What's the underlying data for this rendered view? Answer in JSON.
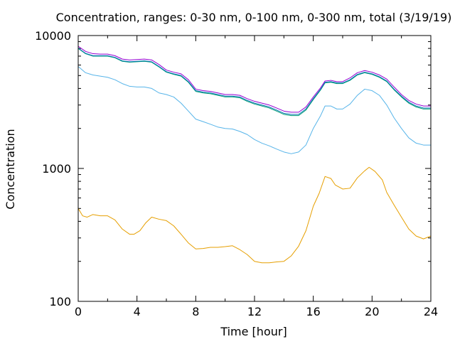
{
  "chart_data": {
    "type": "line",
    "title": "Concentration, ranges: 0-30 nm, 0-100 nm, 0-300 nm, total (3/19/19)",
    "xlabel": "Time [hour]",
    "ylabel": "Concentration",
    "x_scale": "linear",
    "y_scale": "log",
    "xlim": [
      0,
      24
    ],
    "ylim": [
      100,
      10000
    ],
    "x_ticks": [
      0,
      4,
      8,
      12,
      16,
      20,
      24
    ],
    "x_tick_labels": [
      "0",
      "4",
      "8",
      "12",
      "16",
      "20",
      "24"
    ],
    "y_ticks": [
      100,
      1000,
      10000
    ],
    "y_tick_labels": [
      "100",
      "1000",
      "10000"
    ],
    "grid": false,
    "legend": "none",
    "series": [
      {
        "color": "#e69f00",
        "points": [
          [
            0,
            500
          ],
          [
            0.3,
            440
          ],
          [
            0.6,
            430
          ],
          [
            1,
            450
          ],
          [
            1.5,
            440
          ],
          [
            2,
            440
          ],
          [
            2.5,
            410
          ],
          [
            3,
            350
          ],
          [
            3.5,
            320
          ],
          [
            3.8,
            320
          ],
          [
            4.2,
            340
          ],
          [
            4.6,
            390
          ],
          [
            5,
            430
          ],
          [
            5.5,
            415
          ],
          [
            6,
            405
          ],
          [
            6.5,
            370
          ],
          [
            7,
            320
          ],
          [
            7.5,
            275
          ],
          [
            8,
            248
          ],
          [
            8.5,
            250
          ],
          [
            9,
            255
          ],
          [
            9.5,
            255
          ],
          [
            10,
            258
          ],
          [
            10.5,
            262
          ],
          [
            11,
            245
          ],
          [
            11.5,
            225
          ],
          [
            12,
            200
          ],
          [
            12.5,
            195
          ],
          [
            13,
            195
          ],
          [
            13.5,
            198
          ],
          [
            14,
            200
          ],
          [
            14.5,
            220
          ],
          [
            15,
            260
          ],
          [
            15.5,
            340
          ],
          [
            16,
            520
          ],
          [
            16.4,
            650
          ],
          [
            16.8,
            870
          ],
          [
            17.2,
            840
          ],
          [
            17.5,
            750
          ],
          [
            18,
            700
          ],
          [
            18.5,
            710
          ],
          [
            19,
            850
          ],
          [
            19.5,
            960
          ],
          [
            19.8,
            1020
          ],
          [
            20.2,
            950
          ],
          [
            20.7,
            820
          ],
          [
            21,
            660
          ],
          [
            21.5,
            530
          ],
          [
            22,
            430
          ],
          [
            22.5,
            350
          ],
          [
            23,
            310
          ],
          [
            23.5,
            295
          ],
          [
            24,
            310
          ]
        ]
      },
      {
        "color": "#56b4e9",
        "points": [
          [
            0,
            5850
          ],
          [
            0.5,
            5250
          ],
          [
            1,
            5050
          ],
          [
            1.5,
            4950
          ],
          [
            2,
            4850
          ],
          [
            2.5,
            4650
          ],
          [
            3,
            4350
          ],
          [
            3.5,
            4150
          ],
          [
            4,
            4100
          ],
          [
            4.5,
            4100
          ],
          [
            5,
            4000
          ],
          [
            5.5,
            3700
          ],
          [
            6,
            3600
          ],
          [
            6.5,
            3450
          ],
          [
            7,
            3100
          ],
          [
            7.5,
            2700
          ],
          [
            8,
            2350
          ],
          [
            8.5,
            2250
          ],
          [
            9,
            2150
          ],
          [
            9.5,
            2050
          ],
          [
            10,
            2000
          ],
          [
            10.5,
            1980
          ],
          [
            11,
            1900
          ],
          [
            11.5,
            1800
          ],
          [
            12,
            1650
          ],
          [
            12.5,
            1550
          ],
          [
            13,
            1480
          ],
          [
            13.5,
            1400
          ],
          [
            14,
            1330
          ],
          [
            14.5,
            1290
          ],
          [
            15,
            1330
          ],
          [
            15.5,
            1500
          ],
          [
            16,
            2000
          ],
          [
            16.5,
            2500
          ],
          [
            16.8,
            2950
          ],
          [
            17.2,
            2950
          ],
          [
            17.6,
            2800
          ],
          [
            18,
            2800
          ],
          [
            18.5,
            3050
          ],
          [
            19,
            3550
          ],
          [
            19.5,
            3950
          ],
          [
            20,
            3850
          ],
          [
            20.5,
            3550
          ],
          [
            21,
            3000
          ],
          [
            21.5,
            2400
          ],
          [
            22,
            2000
          ],
          [
            22.5,
            1700
          ],
          [
            23,
            1550
          ],
          [
            23.5,
            1500
          ],
          [
            24,
            1500
          ]
        ]
      },
      {
        "color": "#009e73",
        "points": [
          [
            0,
            8000
          ],
          [
            0.5,
            7300
          ],
          [
            1,
            7000
          ],
          [
            1.5,
            7000
          ],
          [
            2,
            7000
          ],
          [
            2.5,
            6800
          ],
          [
            3,
            6400
          ],
          [
            3.5,
            6300
          ],
          [
            4,
            6350
          ],
          [
            4.5,
            6400
          ],
          [
            5,
            6300
          ],
          [
            5.5,
            5800
          ],
          [
            6,
            5300
          ],
          [
            6.5,
            5100
          ],
          [
            7,
            4950
          ],
          [
            7.5,
            4450
          ],
          [
            8,
            3800
          ],
          [
            8.5,
            3700
          ],
          [
            9,
            3650
          ],
          [
            9.5,
            3550
          ],
          [
            10,
            3450
          ],
          [
            10.5,
            3450
          ],
          [
            11,
            3400
          ],
          [
            11.5,
            3200
          ],
          [
            12,
            3050
          ],
          [
            12.5,
            2950
          ],
          [
            13,
            2850
          ],
          [
            13.5,
            2700
          ],
          [
            14,
            2550
          ],
          [
            14.5,
            2500
          ],
          [
            15,
            2500
          ],
          [
            15.5,
            2750
          ],
          [
            16,
            3300
          ],
          [
            16.5,
            3900
          ],
          [
            16.8,
            4400
          ],
          [
            17.2,
            4450
          ],
          [
            17.6,
            4350
          ],
          [
            18,
            4350
          ],
          [
            18.5,
            4600
          ],
          [
            19,
            5050
          ],
          [
            19.5,
            5250
          ],
          [
            20,
            5100
          ],
          [
            20.5,
            4850
          ],
          [
            21,
            4500
          ],
          [
            21.5,
            3900
          ],
          [
            22,
            3450
          ],
          [
            22.5,
            3100
          ],
          [
            23,
            2900
          ],
          [
            23.5,
            2800
          ],
          [
            24,
            2800
          ]
        ]
      },
      {
        "color": "#0072b2",
        "points": [
          [
            0,
            8050
          ],
          [
            0.5,
            7350
          ],
          [
            1,
            7050
          ],
          [
            1.5,
            7050
          ],
          [
            2,
            7050
          ],
          [
            2.5,
            6850
          ],
          [
            3,
            6450
          ],
          [
            3.5,
            6350
          ],
          [
            4,
            6400
          ],
          [
            4.5,
            6450
          ],
          [
            5,
            6350
          ],
          [
            5.5,
            5850
          ],
          [
            6,
            5350
          ],
          [
            6.5,
            5150
          ],
          [
            7,
            5000
          ],
          [
            7.5,
            4500
          ],
          [
            8,
            3850
          ],
          [
            8.5,
            3750
          ],
          [
            9,
            3700
          ],
          [
            9.5,
            3600
          ],
          [
            10,
            3500
          ],
          [
            10.5,
            3500
          ],
          [
            11,
            3450
          ],
          [
            11.5,
            3250
          ],
          [
            12,
            3100
          ],
          [
            12.5,
            3000
          ],
          [
            13,
            2900
          ],
          [
            13.5,
            2750
          ],
          [
            14,
            2600
          ],
          [
            14.5,
            2550
          ],
          [
            15,
            2550
          ],
          [
            15.5,
            2800
          ],
          [
            16,
            3350
          ],
          [
            16.5,
            3950
          ],
          [
            16.8,
            4450
          ],
          [
            17.2,
            4500
          ],
          [
            17.6,
            4400
          ],
          [
            18,
            4400
          ],
          [
            18.5,
            4650
          ],
          [
            19,
            5100
          ],
          [
            19.5,
            5300
          ],
          [
            20,
            5150
          ],
          [
            20.5,
            4900
          ],
          [
            21,
            4550
          ],
          [
            21.5,
            3950
          ],
          [
            22,
            3500
          ],
          [
            22.5,
            3150
          ],
          [
            23,
            2950
          ],
          [
            23.5,
            2850
          ],
          [
            24,
            2850
          ]
        ]
      },
      {
        "color": "#9400d3",
        "points": [
          [
            0,
            8300
          ],
          [
            0.5,
            7600
          ],
          [
            1,
            7300
          ],
          [
            1.5,
            7250
          ],
          [
            2,
            7250
          ],
          [
            2.5,
            7050
          ],
          [
            3,
            6650
          ],
          [
            3.5,
            6550
          ],
          [
            4,
            6600
          ],
          [
            4.5,
            6650
          ],
          [
            5,
            6550
          ],
          [
            5.5,
            6050
          ],
          [
            6,
            5500
          ],
          [
            6.5,
            5300
          ],
          [
            7,
            5150
          ],
          [
            7.5,
            4650
          ],
          [
            8,
            3950
          ],
          [
            8.5,
            3850
          ],
          [
            9,
            3800
          ],
          [
            9.5,
            3700
          ],
          [
            10,
            3600
          ],
          [
            10.5,
            3600
          ],
          [
            11,
            3550
          ],
          [
            11.5,
            3350
          ],
          [
            12,
            3200
          ],
          [
            12.5,
            3100
          ],
          [
            13,
            3000
          ],
          [
            13.5,
            2850
          ],
          [
            14,
            2700
          ],
          [
            14.5,
            2650
          ],
          [
            15,
            2650
          ],
          [
            15.5,
            2900
          ],
          [
            16,
            3450
          ],
          [
            16.5,
            4050
          ],
          [
            16.8,
            4550
          ],
          [
            17.2,
            4600
          ],
          [
            17.6,
            4500
          ],
          [
            18,
            4500
          ],
          [
            18.5,
            4800
          ],
          [
            19,
            5250
          ],
          [
            19.5,
            5450
          ],
          [
            20,
            5300
          ],
          [
            20.5,
            5050
          ],
          [
            21,
            4700
          ],
          [
            21.5,
            4100
          ],
          [
            22,
            3600
          ],
          [
            22.5,
            3250
          ],
          [
            23,
            3050
          ],
          [
            23.5,
            2950
          ],
          [
            24,
            2950
          ]
        ]
      }
    ]
  }
}
